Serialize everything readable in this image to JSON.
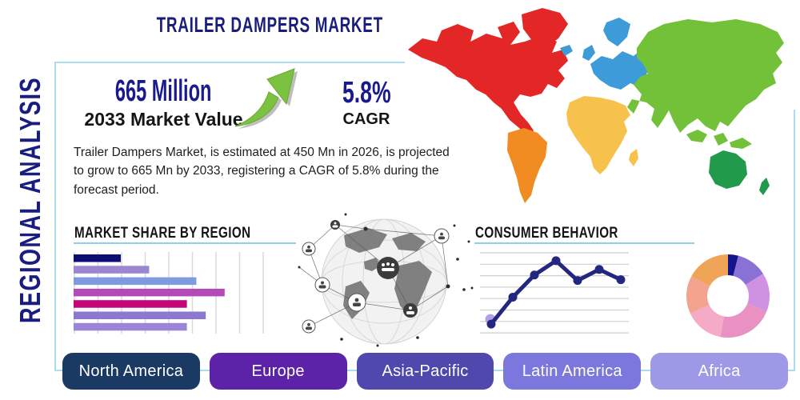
{
  "header": {
    "title": "TRAILER DAMPERS MARKET",
    "side_label": "REGIONAL ANALYSIS"
  },
  "stats": {
    "market_value": "665 Million",
    "market_value_caption": "2033 Market Value",
    "cagr_value": "5.8%",
    "cagr_caption": "CAGR",
    "growth_arrow_icon": "curved-up-right-arrow",
    "growth_arrow_color": "#7cc241"
  },
  "description": "Trailer Dampers Market, is estimated at 450 Mn in 2026, is projected to grow to 665 Mn by 2033, registering a CAGR of 5.8% during the forecast period.",
  "sections": {
    "market_share_title": "MARKET SHARE BY REGION",
    "consumer_behavior_title": "CONSUMER BEHAVIOR"
  },
  "region_buttons": [
    {
      "label": "North America",
      "color": "#1b3a63"
    },
    {
      "label": "Europe",
      "color": "#5c22a7"
    },
    {
      "label": "Asia-Pacific",
      "color": "#4f49ae"
    },
    {
      "label": "Latin America",
      "color": "#7b77dd"
    },
    {
      "label": "Africa",
      "color": "#9d99e6"
    }
  ],
  "map": {
    "icon": "world-map",
    "regions": [
      {
        "name": "north-america",
        "color": "#e32726"
      },
      {
        "name": "south-america",
        "color": "#f08c21"
      },
      {
        "name": "europe",
        "color": "#3e9bd9"
      },
      {
        "name": "africa",
        "color": "#f6c24b"
      },
      {
        "name": "asia",
        "color": "#72c139"
      },
      {
        "name": "oceania",
        "color": "#219a4b"
      }
    ]
  },
  "decorations": {
    "globe_icon": "global-network-globe",
    "panel_border_color": "#a9dcec",
    "underline_color": "#8fd2e2"
  },
  "chart_data": [
    {
      "type": "bar",
      "title": "MARKET SHARE BY REGION",
      "orientation": "horizontal",
      "note": "bars are unlabeled in source; values estimated as % of grid width",
      "values": [
        25,
        40,
        65,
        80,
        60,
        70,
        60
      ],
      "xlim": [
        0,
        100
      ],
      "grid": "vertical",
      "colors": [
        "#0d0d73",
        "#9b87cf",
        "#7f9ade",
        "#b44ab8",
        "#c40577",
        "#8d78cf",
        "#9b85d6"
      ]
    },
    {
      "type": "line",
      "title": "CONSUMER BEHAVIOR",
      "note": "axes unlabeled in source; values estimated from gridlines",
      "x": [
        1,
        2,
        3,
        4,
        5,
        6,
        7
      ],
      "values": [
        11,
        45,
        73,
        91,
        66,
        80,
        67
      ],
      "ylim": [
        0,
        100
      ],
      "grid": "horizontal",
      "line_color": "#23277f",
      "first_point_halo_color": "#b3a0e8"
    },
    {
      "type": "pie",
      "title": "regional share donut",
      "donut": true,
      "note": "slices unlabeled in source; percentages estimated, clockwise from top",
      "values": [
        4,
        12,
        15,
        22,
        15,
        15,
        17
      ],
      "colors": [
        "#14148c",
        "#8a71d6",
        "#cf92e2",
        "#e891c2",
        "#f5aac6",
        "#f4a38e",
        "#f0a457"
      ]
    }
  ]
}
